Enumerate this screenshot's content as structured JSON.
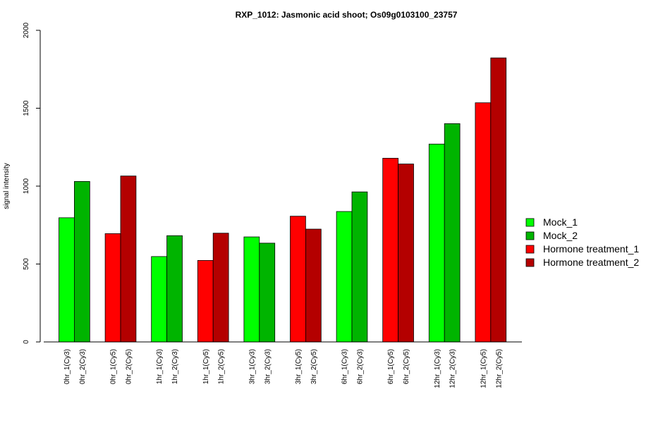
{
  "chart_data": {
    "type": "bar",
    "title": "RXP_1012: Jasmonic acid shoot; Os09g0103100_23757",
    "ylabel": "signal intensity",
    "ylim": [
      0,
      2000
    ],
    "yticks": [
      0,
      500,
      1000,
      1500,
      2000
    ],
    "grid": false,
    "legend_position": "right",
    "legend": [
      {
        "name": "Mock_1",
        "color": "#00ff00"
      },
      {
        "name": "Mock_2",
        "color": "#00b400"
      },
      {
        "name": "Hormone treatment_1",
        "color": "#ff0000"
      },
      {
        "name": "Hormone treatment_2",
        "color": "#b40000"
      }
    ],
    "groups": [
      {
        "bars": [
          {
            "label": "0hr_1(Cy3)",
            "value": 797,
            "color": "#00ff00"
          },
          {
            "label": "0hr_2(Cy3)",
            "value": 1030,
            "color": "#00b400"
          }
        ]
      },
      {
        "bars": [
          {
            "label": "0hr_1(Cy5)",
            "value": 695,
            "color": "#ff0000"
          },
          {
            "label": "0hr_2(Cy5)",
            "value": 1065,
            "color": "#b40000"
          }
        ]
      },
      {
        "bars": [
          {
            "label": "1hr_1(Cy3)",
            "value": 548,
            "color": "#00ff00"
          },
          {
            "label": "1hr_2(Cy3)",
            "value": 682,
            "color": "#00b400"
          }
        ]
      },
      {
        "bars": [
          {
            "label": "1hr_1(Cy5)",
            "value": 523,
            "color": "#ff0000"
          },
          {
            "label": "1hr_2(Cy5)",
            "value": 698,
            "color": "#b40000"
          }
        ]
      },
      {
        "bars": [
          {
            "label": "3hr_1(Cy3)",
            "value": 674,
            "color": "#00ff00"
          },
          {
            "label": "3hr_2(Cy3)",
            "value": 634,
            "color": "#00b400"
          }
        ]
      },
      {
        "bars": [
          {
            "label": "3hr_1(Cy5)",
            "value": 807,
            "color": "#ff0000"
          },
          {
            "label": "3hr_2(Cy5)",
            "value": 724,
            "color": "#b40000"
          }
        ]
      },
      {
        "bars": [
          {
            "label": "6hr_1(Cy3)",
            "value": 837,
            "color": "#00ff00"
          },
          {
            "label": "6hr_2(Cy3)",
            "value": 963,
            "color": "#00b400"
          }
        ]
      },
      {
        "bars": [
          {
            "label": "6hr_1(Cy5)",
            "value": 1179,
            "color": "#ff0000"
          },
          {
            "label": "6hr_2(Cy5)",
            "value": 1142,
            "color": "#b40000"
          }
        ]
      },
      {
        "bars": [
          {
            "label": "12hr_1(Cy3)",
            "value": 1270,
            "color": "#00ff00"
          },
          {
            "label": "12hr_2(Cy3)",
            "value": 1401,
            "color": "#00b400"
          }
        ]
      },
      {
        "bars": [
          {
            "label": "12hr_1(Cy5)",
            "value": 1535,
            "color": "#ff0000"
          },
          {
            "label": "12hr_2(Cy5)",
            "value": 1823,
            "color": "#b40000"
          }
        ]
      }
    ]
  }
}
